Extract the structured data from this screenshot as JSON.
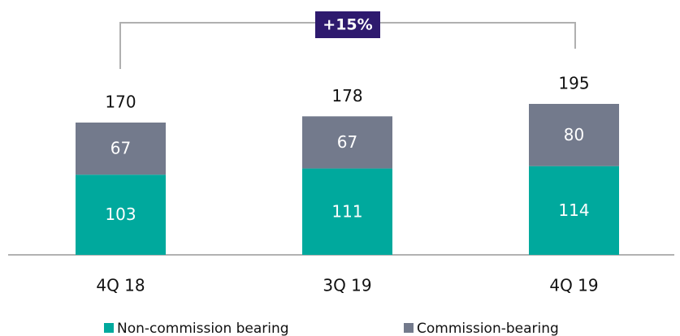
{
  "chart_data": {
    "type": "stacked_bar",
    "categories": [
      "4Q 18",
      "3Q 19",
      "4Q 19"
    ],
    "series": [
      {
        "name": "Non-commission bearing",
        "color": "#00a99d",
        "values": [
          103,
          111,
          114
        ]
      },
      {
        "name": "Commission-bearing",
        "color": "#737a8c",
        "values": [
          67,
          67,
          80
        ]
      }
    ],
    "totals": [
      170,
      178,
      195
    ],
    "annotation": "+15%"
  }
}
